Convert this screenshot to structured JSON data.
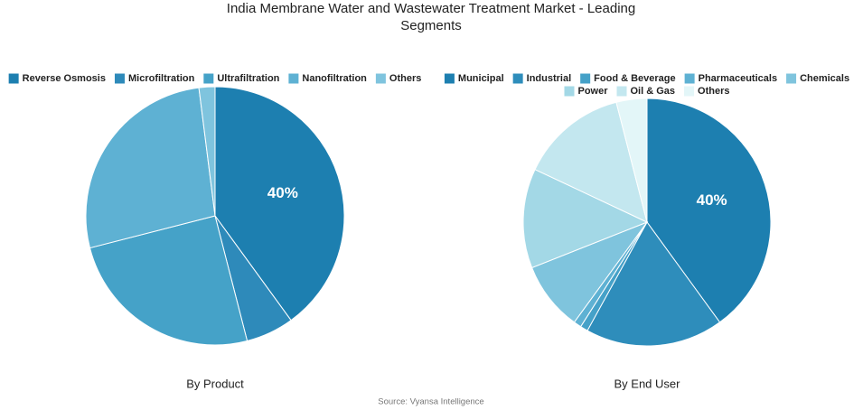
{
  "title": "India Membrane Water and Wastewater Treatment Market - Leading Segments",
  "source": "Source: Vyansa Intelligence",
  "chart_data": [
    {
      "type": "pie",
      "title": "By Product",
      "categories": [
        "Reverse Osmosis",
        "Microfiltration",
        "Ultrafiltration",
        "Nanofiltration",
        "Others"
      ],
      "values": [
        40,
        6,
        25,
        27,
        2
      ],
      "value_labels": [
        "40%",
        null,
        null,
        null,
        null
      ],
      "colors": [
        "#1d7fb0",
        "#2e8aba",
        "#45a2c8",
        "#5eb1d3",
        "#7fc4de"
      ],
      "legend": "top"
    },
    {
      "type": "pie",
      "title": "By End User",
      "categories": [
        "Municipal",
        "Industrial",
        "Food & Beverage",
        "Pharmaceuticals",
        "Chemicals",
        "Power",
        "Oil & Gas",
        "Others"
      ],
      "values": [
        40,
        18,
        1,
        1,
        9,
        13,
        14,
        4
      ],
      "value_labels": [
        "40%",
        null,
        null,
        null,
        null,
        null,
        null,
        null
      ],
      "colors": [
        "#1d7fb0",
        "#2e8dbb",
        "#45a1c8",
        "#5eb1d3",
        "#7fc4dd",
        "#a3d8e6",
        "#c3e7ef",
        "#e3f6f8"
      ],
      "legend": "top"
    }
  ]
}
